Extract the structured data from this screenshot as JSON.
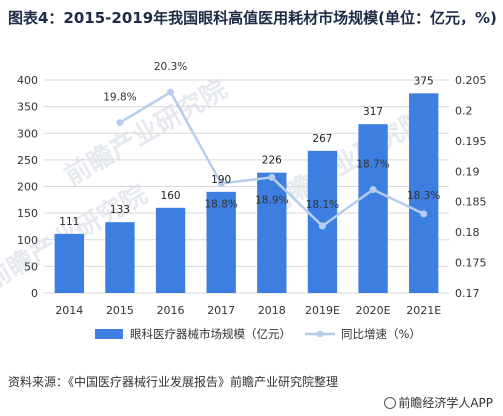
{
  "title": "图表4：2015-2019年我国眼科高值医用耗材市场规模(单位：亿元，%)",
  "source": "资料来源：《中国医疗器械行业发展报告》前瞻产业研究院整理",
  "brand": "前瞻经济学人APP",
  "watermark": "前瞻产业研究院",
  "colors": {
    "bar": "#3d7fe0",
    "line": "#b7cdee",
    "grid": "#d9d9d9"
  },
  "chart_data": {
    "type": "bar",
    "categories": [
      "2014",
      "2015",
      "2016",
      "2017",
      "2018",
      "2019E",
      "2020E",
      "2021E"
    ],
    "series": [
      {
        "name": "眼科医疗器械市场规模（亿元）",
        "type": "bar",
        "axis": "left",
        "values": [
          111,
          133,
          160,
          190,
          226,
          267,
          317,
          375
        ]
      },
      {
        "name": "同比增速（%）",
        "type": "line",
        "axis": "right",
        "values": [
          null,
          0.198,
          0.203,
          0.188,
          0.189,
          0.181,
          0.187,
          0.183
        ],
        "labels": [
          "",
          "19.8%",
          "20.3%",
          "18.8%",
          "18.9%",
          "18.1%",
          "18.7%",
          "18.3%"
        ]
      }
    ],
    "y_left": {
      "range": [
        0,
        400
      ],
      "ticks": [
        0,
        50,
        100,
        150,
        200,
        250,
        300,
        350,
        400
      ]
    },
    "y_right": {
      "range": [
        0.17,
        0.205
      ],
      "ticks": [
        "0.17",
        "0.175",
        "0.18",
        "0.185",
        "0.19",
        "0.195",
        "0.2",
        "0.205"
      ]
    },
    "grid": true,
    "legend": "bottom"
  }
}
